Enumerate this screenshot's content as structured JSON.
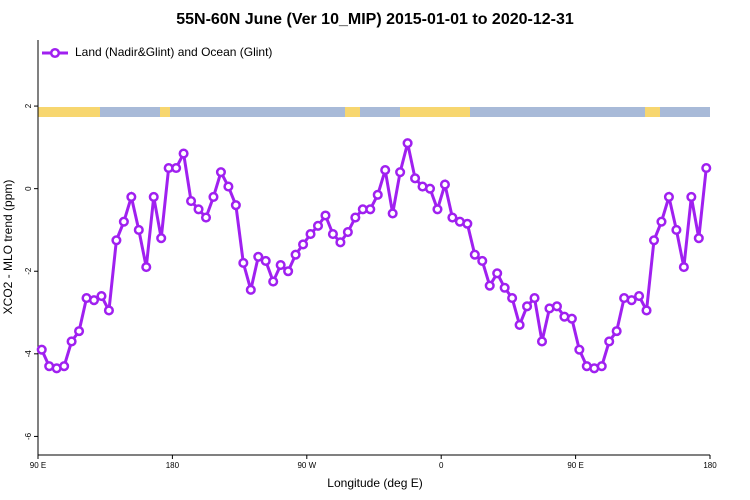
{
  "chart_data": {
    "type": "line",
    "title": "55N-60N June (Ver 10_MIP)   2015-01-01 to 2020-12-31",
    "xlabel": "Longitude (deg E)",
    "ylabel": "XCO2 - MLO trend (ppm)",
    "x": [
      92.5,
      97.5,
      102.5,
      107.5,
      112.5,
      117.5,
      122.5,
      127.5,
      132.5,
      137.5,
      142.5,
      147.5,
      152.5,
      157.5,
      162.5,
      167.5,
      172.5,
      177.5,
      182.5,
      187.5,
      192.5,
      197.5,
      202.5,
      207.5,
      212.5,
      217.5,
      222.5,
      227.5,
      232.5,
      237.5,
      242.5,
      247.5,
      252.5,
      257.5,
      262.5,
      267.5,
      272.5,
      277.5,
      282.5,
      287.5,
      292.5,
      297.5,
      302.5,
      307.5,
      312.5,
      317.5,
      322.5,
      327.5,
      332.5,
      337.5,
      342.5,
      347.5,
      352.5,
      357.5,
      362.5,
      367.5,
      372.5,
      377.5,
      382.5,
      387.5,
      392.5,
      397.5,
      402.5,
      407.5,
      412.5,
      417.5,
      422.5,
      427.5,
      432.5,
      437.5,
      442.5,
      447.5,
      452.5,
      457.5,
      462.5,
      467.5,
      472.5,
      477.5,
      482.5,
      487.5,
      492.5,
      497.5,
      502.5,
      507.5,
      512.5,
      517.5,
      522.5,
      527.5,
      532.5,
      537.5
    ],
    "series": [
      {
        "name": "Land (Nadir&Glint) and Ocean (Glint)",
        "color": "#a020f0",
        "values": [
          -3.9,
          -4.3,
          -4.35,
          -4.3,
          -3.7,
          -3.45,
          -2.65,
          -2.7,
          -2.6,
          -2.95,
          -1.25,
          -0.8,
          -0.2,
          -1.0,
          -1.9,
          -0.2,
          -1.2,
          0.5,
          0.5,
          0.85,
          -0.3,
          -0.5,
          -0.7,
          -0.2,
          0.4,
          0.05,
          -0.4,
          -1.8,
          -2.45,
          -1.65,
          -1.75,
          -2.25,
          -1.85,
          -2.0,
          -1.6,
          -1.35,
          -1.1,
          -0.9,
          -0.65,
          -1.1,
          -1.3,
          -1.05,
          -0.7,
          -0.5,
          -0.5,
          -0.15,
          0.45,
          -0.6,
          0.4,
          1.1,
          0.25,
          0.05,
          0.0,
          -0.5,
          0.1,
          -0.7,
          -0.8,
          -0.85,
          -1.6,
          -1.75,
          -2.35,
          -2.05,
          -2.4,
          -2.65,
          -3.3,
          -2.85,
          -2.65,
          -3.7,
          -2.9,
          -2.85,
          -3.1,
          -3.15,
          -3.9,
          -4.3,
          -4.35,
          -4.3,
          -3.7,
          -3.45,
          -2.65,
          -2.7,
          -2.6,
          -2.95,
          -1.25,
          -0.8,
          -0.2,
          -1.0,
          -1.9,
          -0.2,
          -1.2,
          0.5
        ]
      }
    ],
    "xlim": [
      90,
      540
    ],
    "xticks": [
      {
        "value": 90,
        "label": "90 E"
      },
      180,
      {
        "value": 270,
        "label": "90 W"
      },
      {
        "value": 360,
        "label": "0"
      },
      {
        "value": 450,
        "label": "90 E"
      },
      {
        "value": 540,
        "label": "180"
      }
    ],
    "ylim": [
      -6.45,
      3.6
    ],
    "yticks": [
      -6,
      -4,
      -2,
      0,
      2
    ],
    "legend": "top-left"
  }
}
